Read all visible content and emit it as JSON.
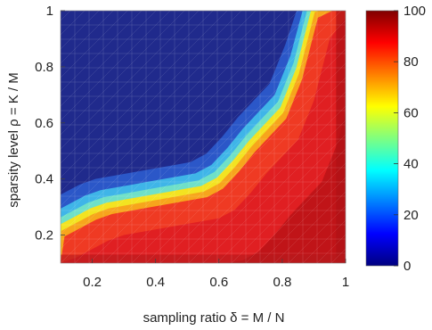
{
  "chart_data": {
    "type": "heatmap",
    "title": "",
    "xlabel": "sampling ratio δ = M / N",
    "ylabel": "sparsity level ρ = K / M",
    "xlim": [
      0.1,
      1.0
    ],
    "ylim": [
      0.1,
      1.0
    ],
    "x_ticks": [
      0.2,
      0.4,
      0.6,
      0.8,
      1.0
    ],
    "x_tick_labels": [
      "0.2",
      "0.4",
      "0.6",
      "0.8",
      "1"
    ],
    "y_ticks": [
      0.2,
      0.4,
      0.6,
      0.8,
      1.0
    ],
    "y_tick_labels": [
      "0.2",
      "0.4",
      "0.6",
      "0.8",
      "1"
    ],
    "grid": false,
    "colormap": "jet",
    "colorbar": {
      "min": 0,
      "max": 100,
      "ticks": [
        0,
        20,
        40,
        60,
        80,
        100
      ],
      "tick_labels": [
        "0",
        "20",
        "40",
        "60",
        "80",
        "100"
      ],
      "placement": "right"
    },
    "transition_curve": {
      "description_values_only": true,
      "x": [
        0.1,
        0.15,
        0.2,
        0.25,
        0.3,
        0.35,
        0.4,
        0.45,
        0.5,
        0.55,
        0.6,
        0.65,
        0.7,
        0.75,
        0.8,
        0.85,
        0.9
      ],
      "y": [
        0.22,
        0.25,
        0.28,
        0.3,
        0.31,
        0.32,
        0.33,
        0.34,
        0.35,
        0.36,
        0.39,
        0.45,
        0.52,
        0.58,
        0.64,
        0.78,
        1.0
      ]
    }
  }
}
